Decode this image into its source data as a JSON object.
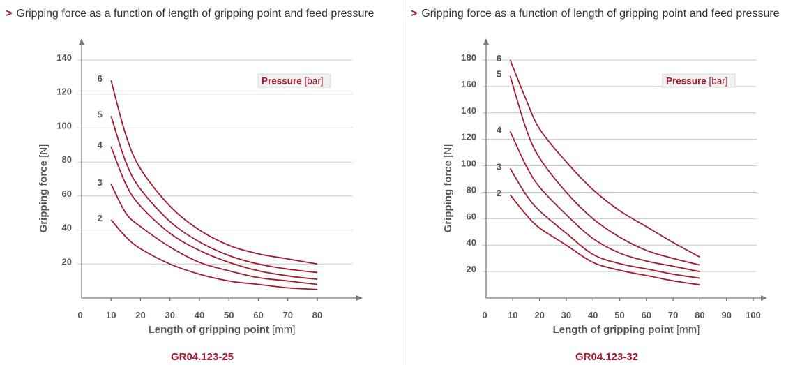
{
  "panels": [
    {
      "title_prefix": ">",
      "title": "Gripping force as a function of length of gripping point and feed pressure",
      "model": "GR04.123-25",
      "chart_data": {
        "type": "line",
        "xlabel": "Length of gripping point",
        "xunit": "[mm]",
        "ylabel": "Gripping force",
        "yunit": "[N]",
        "x_origin_label": "0",
        "xticks": [
          10,
          20,
          30,
          40,
          50,
          60,
          70,
          80
        ],
        "yticks": [
          20,
          40,
          60,
          80,
          100,
          120,
          140
        ],
        "xlim": [
          0,
          93
        ],
        "ylim": [
          0,
          150
        ],
        "legend_title": "Pressure",
        "legend_unit": "[bar]",
        "legend_position": "top-right",
        "grid": "horizontal",
        "series": [
          {
            "name": "2",
            "x": [
              10,
              15,
              20,
              30,
              40,
              50,
              60,
              70,
              80
            ],
            "y": [
              46,
              36,
              29,
              20,
              14,
              10,
              8,
              6,
              5
            ]
          },
          {
            "name": "3",
            "x": [
              10,
              15,
              20,
              30,
              40,
              50,
              60,
              70,
              80
            ],
            "y": [
              67,
              50,
              42,
              30,
              21,
              16,
              12,
              10,
              8
            ]
          },
          {
            "name": "4",
            "x": [
              10,
              15,
              20,
              30,
              40,
              50,
              60,
              70,
              80
            ],
            "y": [
              89,
              67,
              54,
              38,
              28,
              21,
              16,
              13,
              11
            ]
          },
          {
            "name": "5",
            "x": [
              10,
              15,
              20,
              30,
              40,
              50,
              60,
              70,
              80
            ],
            "y": [
              107,
              80,
              64,
              45,
              33,
              25,
              20,
              17,
              15
            ]
          },
          {
            "name": "6",
            "x": [
              10,
              15,
              20,
              30,
              40,
              50,
              60,
              70,
              80
            ],
            "y": [
              128,
              96,
              76,
              54,
              40,
              31,
              26,
              23,
              20
            ]
          }
        ]
      }
    },
    {
      "title_prefix": ">",
      "title": "Gripping force as a function of length of gripping point and feed pressure",
      "model": "GR04.123-32",
      "chart_data": {
        "type": "line",
        "xlabel": "Length of gripping point",
        "xunit": "[mm]",
        "ylabel": "Gripping force",
        "yunit": "[N]",
        "x_origin_label": "0",
        "xticks": [
          10,
          20,
          30,
          40,
          50,
          60,
          70,
          80,
          90,
          100
        ],
        "yticks": [
          20,
          40,
          60,
          80,
          100,
          120,
          140,
          160,
          180
        ],
        "xlim": [
          0,
          105
        ],
        "ylim": [
          0,
          195
        ],
        "legend_title": "Pressure",
        "legend_unit": "[bar]",
        "legend_position": "top-right",
        "grid": "horizontal",
        "series": [
          {
            "name": "2",
            "x": [
              9,
              15,
              20,
              30,
              40,
              50,
              60,
              70,
              80
            ],
            "y": [
              78,
              63,
              53,
              40,
              27,
              21,
              17,
              13,
              10
            ]
          },
          {
            "name": "3",
            "x": [
              9,
              15,
              20,
              30,
              40,
              50,
              60,
              70,
              80
            ],
            "y": [
              98,
              78,
              66,
              49,
              33,
              26,
              22,
              18,
              15
            ]
          },
          {
            "name": "4",
            "x": [
              9,
              15,
              20,
              30,
              40,
              50,
              60,
              70,
              80
            ],
            "y": [
              126,
              100,
              84,
              63,
              45,
              34,
              28,
              24,
              20
            ]
          },
          {
            "name": "5",
            "x": [
              9,
              15,
              20,
              30,
              40,
              50,
              60,
              70,
              80
            ],
            "y": [
              168,
              128,
              106,
              80,
              60,
              46,
              36,
              30,
              25
            ]
          },
          {
            "name": "6",
            "x": [
              9,
              15,
              20,
              30,
              40,
              50,
              60,
              70,
              80
            ],
            "y": [
              180,
              150,
              128,
              103,
              82,
              66,
              54,
              42,
              31
            ]
          }
        ]
      }
    }
  ]
}
